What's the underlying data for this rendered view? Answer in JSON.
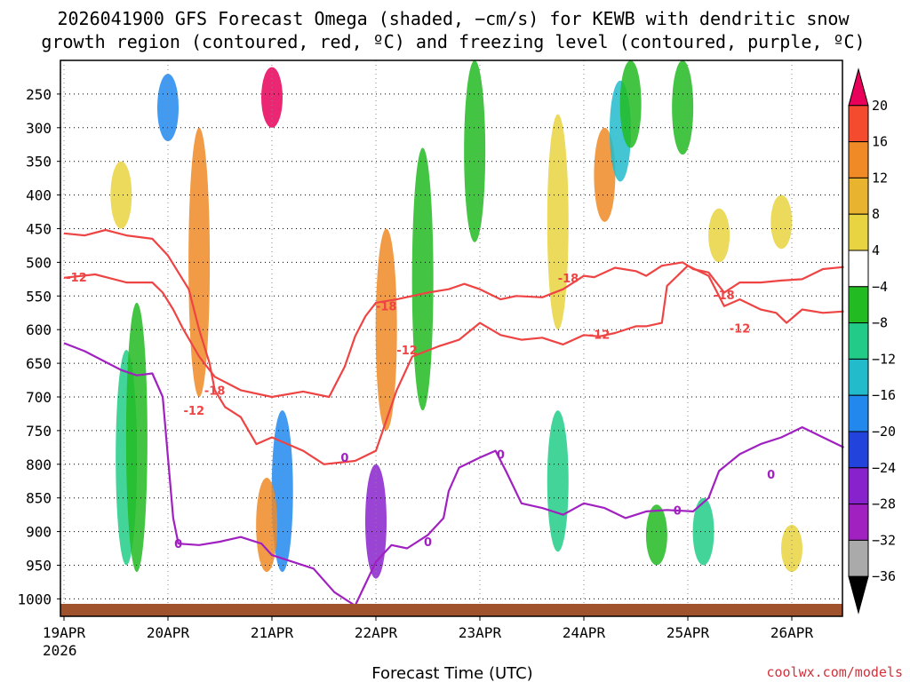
{
  "colors": {
    "red_contour": "#ee4444",
    "purple_contour": "#a020c0",
    "ground": "#a0522d",
    "credit": "#d2303a"
  },
  "chart_data": {
    "type": "heatmap",
    "title_lines": [
      "2026041900 GFS Forecast Omega (shaded, −cm/s) for KEWB with dendritic snow",
      "growth region (contoured, red, ºC) and freezing level (contoured, purple, ºC)"
    ],
    "xlabel": "Forecast Time (UTC)",
    "ylabel": "",
    "credit": "coolwx.com/models",
    "x_ticks": [
      {
        "label": "19APR",
        "day": 0
      },
      {
        "label": "20APR",
        "day": 1
      },
      {
        "label": "21APR",
        "day": 2
      },
      {
        "label": "22APR",
        "day": 3
      },
      {
        "label": "23APR",
        "day": 4
      },
      {
        "label": "24APR",
        "day": 5
      },
      {
        "label": "25APR",
        "day": 6
      },
      {
        "label": "26APR",
        "day": 7
      }
    ],
    "x_year_label": "2026",
    "xlim_days": [
      0,
      7.5
    ],
    "ylim_hpa": [
      1010,
      200
    ],
    "y_ticks": [
      250,
      300,
      350,
      400,
      450,
      500,
      550,
      600,
      650,
      700,
      750,
      800,
      850,
      900,
      950,
      1000
    ],
    "colorbar": {
      "labels": [
        "20",
        "16",
        "12",
        "8",
        "4",
        "−4",
        "−8",
        "−12",
        "−16",
        "−20",
        "−24",
        "−28",
        "−32",
        "−36"
      ],
      "colors": [
        "#e8005a",
        "#f44a2e",
        "#f08a26",
        "#e8b430",
        "#e8d440",
        "#ffffff",
        "#22bb22",
        "#22cc88",
        "#22bbcc",
        "#2288ee",
        "#2244dd",
        "#8822cc",
        "#a020c0",
        "#aaaaaa",
        "#000000"
      ]
    },
    "series": [
      {
        "name": "-12 C (red)",
        "color": "#ee4444",
        "points": [
          [
            0,
            457
          ],
          [
            0.2,
            460
          ],
          [
            0.4,
            452
          ],
          [
            0.6,
            460
          ],
          [
            0.85,
            465
          ],
          [
            1.0,
            490
          ],
          [
            1.2,
            540
          ],
          [
            1.3,
            600
          ],
          [
            1.4,
            650
          ],
          [
            1.45,
            690
          ],
          [
            1.55,
            715
          ],
          [
            1.7,
            730
          ],
          [
            1.85,
            770
          ],
          [
            2.0,
            760
          ],
          [
            2.3,
            780
          ],
          [
            2.5,
            800
          ],
          [
            2.8,
            795
          ],
          [
            3.0,
            780
          ],
          [
            3.2,
            690
          ],
          [
            3.35,
            640
          ],
          [
            3.6,
            625
          ],
          [
            3.8,
            615
          ],
          [
            4.0,
            590
          ],
          [
            4.2,
            608
          ],
          [
            4.4,
            615
          ],
          [
            4.6,
            612
          ],
          [
            4.8,
            622
          ],
          [
            5.0,
            608
          ],
          [
            5.15,
            610
          ],
          [
            5.3,
            605
          ],
          [
            5.5,
            595
          ],
          [
            5.6,
            595
          ],
          [
            5.75,
            590
          ],
          [
            5.8,
            535
          ],
          [
            6.0,
            505
          ],
          [
            6.2,
            520
          ],
          [
            6.35,
            565
          ],
          [
            6.5,
            555
          ],
          [
            6.7,
            570
          ],
          [
            6.85,
            575
          ],
          [
            6.95,
            590
          ],
          [
            7.1,
            570
          ],
          [
            7.3,
            575
          ],
          [
            7.5,
            573
          ]
        ]
      },
      {
        "name": "-18 C (red)",
        "color": "#ee4444",
        "points": [
          [
            0,
            523
          ],
          [
            0.3,
            518
          ],
          [
            0.6,
            530
          ],
          [
            0.85,
            530
          ],
          [
            0.95,
            545
          ],
          [
            1.05,
            570
          ],
          [
            1.15,
            600
          ],
          [
            1.3,
            640
          ],
          [
            1.45,
            670
          ],
          [
            1.7,
            690
          ],
          [
            2.0,
            700
          ],
          [
            2.3,
            692
          ],
          [
            2.55,
            700
          ],
          [
            2.7,
            655
          ],
          [
            2.8,
            610
          ],
          [
            2.9,
            580
          ],
          [
            3.0,
            560
          ],
          [
            3.2,
            555
          ],
          [
            3.5,
            545
          ],
          [
            3.7,
            540
          ],
          [
            3.85,
            532
          ],
          [
            4.0,
            540
          ],
          [
            4.2,
            555
          ],
          [
            4.35,
            550
          ],
          [
            4.6,
            552
          ],
          [
            4.8,
            540
          ],
          [
            5.0,
            520
          ],
          [
            5.1,
            522
          ],
          [
            5.3,
            508
          ],
          [
            5.5,
            513
          ],
          [
            5.6,
            520
          ],
          [
            5.75,
            505
          ],
          [
            5.95,
            500
          ],
          [
            6.05,
            510
          ],
          [
            6.2,
            515
          ],
          [
            6.35,
            545
          ],
          [
            6.5,
            530
          ],
          [
            6.7,
            530
          ],
          [
            6.9,
            527
          ],
          [
            7.1,
            525
          ],
          [
            7.3,
            510
          ],
          [
            7.5,
            507
          ]
        ]
      },
      {
        "name": "0 C freezing level (purple)",
        "color": "#a020c0",
        "points": [
          [
            0,
            620
          ],
          [
            0.2,
            632
          ],
          [
            0.4,
            648
          ],
          [
            0.55,
            660
          ],
          [
            0.7,
            668
          ],
          [
            0.85,
            665
          ],
          [
            0.95,
            700
          ],
          [
            1.0,
            790
          ],
          [
            1.05,
            880
          ],
          [
            1.1,
            918
          ],
          [
            1.3,
            920
          ],
          [
            1.5,
            915
          ],
          [
            1.7,
            908
          ],
          [
            1.9,
            918
          ],
          [
            2.0,
            935
          ],
          [
            2.2,
            945
          ],
          [
            2.4,
            955
          ],
          [
            2.6,
            990
          ],
          [
            2.8,
            1010
          ],
          [
            3.0,
            945
          ],
          [
            3.15,
            920
          ],
          [
            3.3,
            925
          ],
          [
            3.5,
            905
          ],
          [
            3.65,
            880
          ],
          [
            3.7,
            840
          ],
          [
            3.8,
            805
          ],
          [
            4.0,
            790
          ],
          [
            4.15,
            780
          ],
          [
            4.25,
            810
          ],
          [
            4.4,
            858
          ],
          [
            4.6,
            865
          ],
          [
            4.8,
            875
          ],
          [
            5.0,
            858
          ],
          [
            5.2,
            865
          ],
          [
            5.4,
            880
          ],
          [
            5.6,
            870
          ],
          [
            5.8,
            868
          ],
          [
            6.05,
            870
          ],
          [
            6.2,
            850
          ],
          [
            6.3,
            810
          ],
          [
            6.5,
            785
          ],
          [
            6.7,
            770
          ],
          [
            6.9,
            760
          ],
          [
            7.1,
            745
          ],
          [
            7.3,
            760
          ],
          [
            7.5,
            775
          ]
        ]
      }
    ],
    "contour_labels": [
      {
        "text": "-12",
        "color": "#ee4444",
        "day": 0.12,
        "hpa": 522
      },
      {
        "text": "-18",
        "color": "#ee4444",
        "day": 1.45,
        "hpa": 690
      },
      {
        "text": "-12",
        "color": "#ee4444",
        "day": 1.25,
        "hpa": 720
      },
      {
        "text": "-18",
        "color": "#ee4444",
        "day": 3.1,
        "hpa": 565
      },
      {
        "text": "-12",
        "color": "#ee4444",
        "day": 3.3,
        "hpa": 630
      },
      {
        "text": "-18",
        "color": "#ee4444",
        "day": 4.85,
        "hpa": 523
      },
      {
        "text": "-12",
        "color": "#ee4444",
        "day": 5.15,
        "hpa": 607
      },
      {
        "text": "-18",
        "color": "#ee4444",
        "day": 6.35,
        "hpa": 548
      },
      {
        "text": "-12",
        "color": "#ee4444",
        "day": 6.5,
        "hpa": 598
      },
      {
        "text": "0",
        "color": "#a020c0",
        "day": 1.1,
        "hpa": 918
      },
      {
        "text": "0",
        "color": "#a020c0",
        "day": 2.7,
        "hpa": 790
      },
      {
        "text": "0",
        "color": "#a020c0",
        "day": 3.5,
        "hpa": 915
      },
      {
        "text": "0",
        "color": "#a020c0",
        "day": 4.2,
        "hpa": 785
      },
      {
        "text": "0",
        "color": "#a020c0",
        "day": 5.9,
        "hpa": 868
      },
      {
        "text": "0",
        "color": "#a020c0",
        "day": 6.8,
        "hpa": 815
      }
    ],
    "shaded_cells": [
      {
        "day": 0.6,
        "hpa_top": 630,
        "hpa_bottom": 950,
        "value": -12
      },
      {
        "day": 0.7,
        "hpa_top": 560,
        "hpa_bottom": 960,
        "value": -8
      },
      {
        "day": 0.55,
        "hpa_top": 350,
        "hpa_bottom": 450,
        "value": 4
      },
      {
        "day": 1.0,
        "hpa_top": 220,
        "hpa_bottom": 320,
        "value": -20
      },
      {
        "day": 1.3,
        "hpa_top": 300,
        "hpa_bottom": 700,
        "value": 12
      },
      {
        "day": 2.0,
        "hpa_top": 210,
        "hpa_bottom": 300,
        "value": 20
      },
      {
        "day": 2.1,
        "hpa_top": 720,
        "hpa_bottom": 960,
        "value": -20
      },
      {
        "day": 1.95,
        "hpa_top": 820,
        "hpa_bottom": 960,
        "value": 12
      },
      {
        "day": 3.1,
        "hpa_top": 450,
        "hpa_bottom": 750,
        "value": 12
      },
      {
        "day": 3.45,
        "hpa_top": 330,
        "hpa_bottom": 720,
        "value": -8
      },
      {
        "day": 3.0,
        "hpa_top": 800,
        "hpa_bottom": 970,
        "value": -28
      },
      {
        "day": 3.95,
        "hpa_top": 200,
        "hpa_bottom": 470,
        "value": -8
      },
      {
        "day": 4.75,
        "hpa_top": 280,
        "hpa_bottom": 600,
        "value": 4
      },
      {
        "day": 5.2,
        "hpa_top": 300,
        "hpa_bottom": 440,
        "value": 12
      },
      {
        "day": 5.35,
        "hpa_top": 230,
        "hpa_bottom": 380,
        "value": -16
      },
      {
        "day": 5.45,
        "hpa_top": 200,
        "hpa_bottom": 330,
        "value": -8
      },
      {
        "day": 5.95,
        "hpa_top": 200,
        "hpa_bottom": 340,
        "value": -8
      },
      {
        "day": 6.3,
        "hpa_top": 420,
        "hpa_bottom": 500,
        "value": 4
      },
      {
        "day": 6.9,
        "hpa_top": 400,
        "hpa_bottom": 480,
        "value": 4
      },
      {
        "day": 4.75,
        "hpa_top": 720,
        "hpa_bottom": 930,
        "value": -12
      },
      {
        "day": 5.7,
        "hpa_top": 860,
        "hpa_bottom": 950,
        "value": -8
      },
      {
        "day": 6.15,
        "hpa_top": 850,
        "hpa_bottom": 950,
        "value": -12
      },
      {
        "day": 7.0,
        "hpa_top": 890,
        "hpa_bottom": 960,
        "value": 4
      }
    ]
  }
}
